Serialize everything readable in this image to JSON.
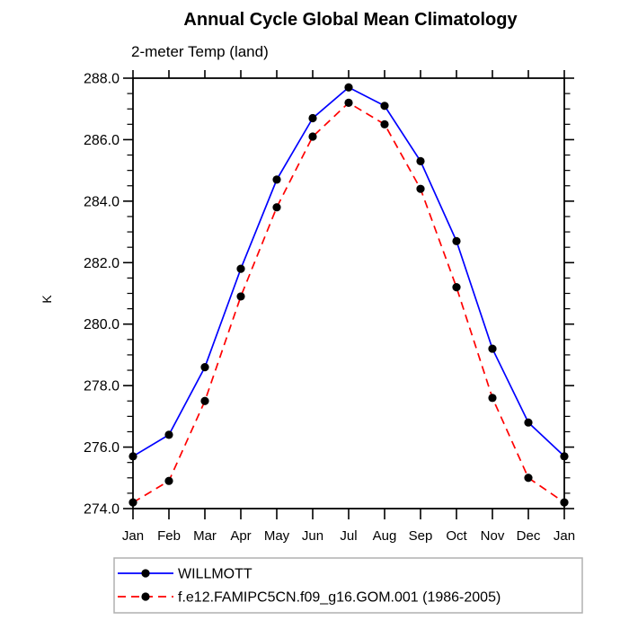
{
  "title": "Annual Cycle Global Mean Climatology",
  "subtitle": "2-meter Temp (land)",
  "colors": {
    "willmott_line": "#0000ff",
    "model_line": "#ff0000",
    "marker": "#000000",
    "axis": "#000000",
    "legend_border": "#b0b0b0",
    "background": "#ffffff"
  },
  "legend": {
    "entries": [
      {
        "label": "WILLMOTT"
      },
      {
        "label": "f.e12.FAMIPC5CN.f09_g16.GOM.001 (1986-2005)"
      }
    ]
  },
  "chart_data": {
    "type": "line",
    "title": "Annual Cycle Global Mean Climatology",
    "subtitle": "2-meter Temp (land)",
    "xlabel": "",
    "ylabel": "K",
    "categories": [
      "Jan",
      "Feb",
      "Mar",
      "Apr",
      "May",
      "Jun",
      "Jul",
      "Aug",
      "Sep",
      "Oct",
      "Nov",
      "Dec",
      "Jan"
    ],
    "ylim": [
      274.0,
      288.0
    ],
    "ytick_major_interval": 2.0,
    "ytick_minor_interval": 0.5,
    "ytick_label_format_decimals": 1,
    "grid": false,
    "legend_position": "bottom-left-box",
    "series": [
      {
        "name": "WILLMOTT",
        "color": "#0000ff",
        "style": "solid",
        "marker": "circle",
        "marker_color": "#000000",
        "values": [
          275.7,
          276.4,
          278.6,
          281.8,
          284.7,
          286.7,
          287.7,
          287.1,
          285.3,
          282.7,
          279.2,
          276.8,
          275.7
        ]
      },
      {
        "name": "f.e12.FAMIPC5CN.f09_g16.GOM.001 (1986-2005)",
        "color": "#ff0000",
        "style": "dashed",
        "marker": "circle",
        "marker_color": "#000000",
        "values": [
          274.2,
          274.9,
          277.5,
          280.9,
          283.8,
          286.1,
          287.2,
          286.5,
          284.4,
          281.2,
          277.6,
          275.0,
          274.2
        ]
      }
    ]
  }
}
